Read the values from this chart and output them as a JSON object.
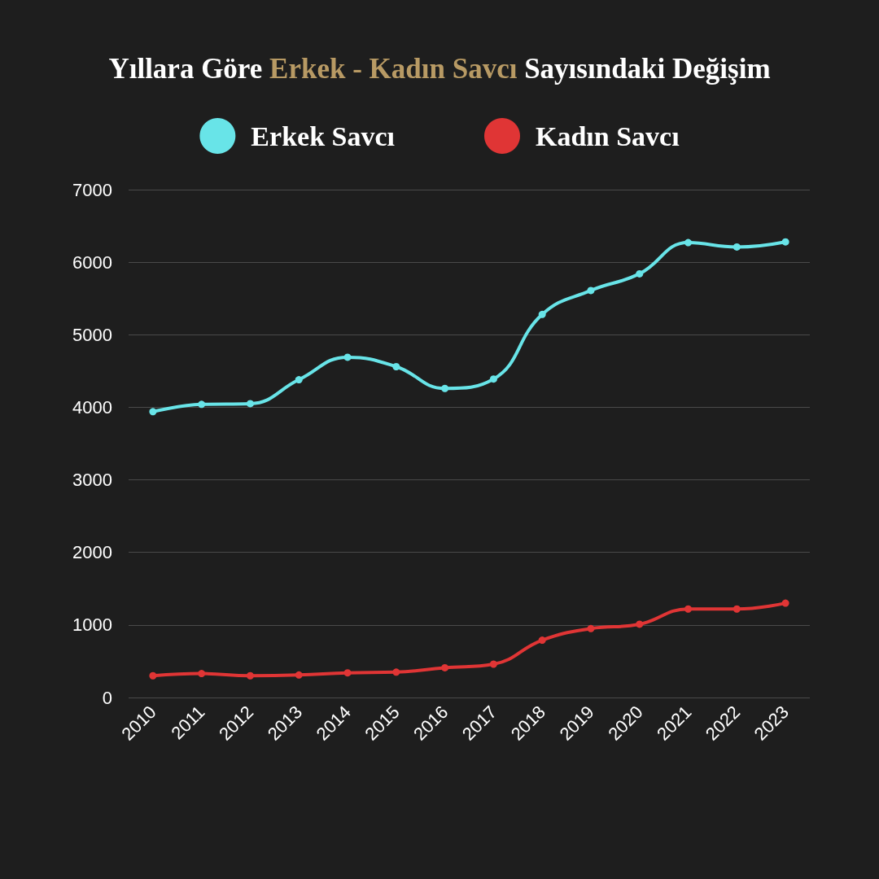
{
  "chart_data": {
    "type": "line",
    "title": "Yıllara Göre Erkek - Kadın Savcı Sayısındaki Değişim",
    "categories": [
      "2010",
      "2011",
      "2012",
      "2013",
      "2014",
      "2015",
      "2016",
      "2017",
      "2018",
      "2019",
      "2020",
      "2021",
      "2022",
      "2023"
    ],
    "series": [
      {
        "name": "Erkek Savcı",
        "color": "#68e4e8",
        "values": [
          3940,
          4040,
          4050,
          4380,
          4690,
          4560,
          4260,
          4390,
          5280,
          5610,
          5840,
          6270,
          6210,
          6280
        ]
      },
      {
        "name": "Kadın Savcı",
        "color": "#e03535",
        "values": [
          300,
          330,
          300,
          310,
          340,
          350,
          410,
          460,
          790,
          950,
          1010,
          1220,
          1220,
          1300
        ]
      }
    ],
    "ylim": [
      0,
      7000
    ],
    "yticks": [
      0,
      1000,
      2000,
      3000,
      4000,
      5000,
      6000,
      7000
    ],
    "grid": "y",
    "legend": "top",
    "marker": "circle",
    "line_style": "solid"
  }
}
